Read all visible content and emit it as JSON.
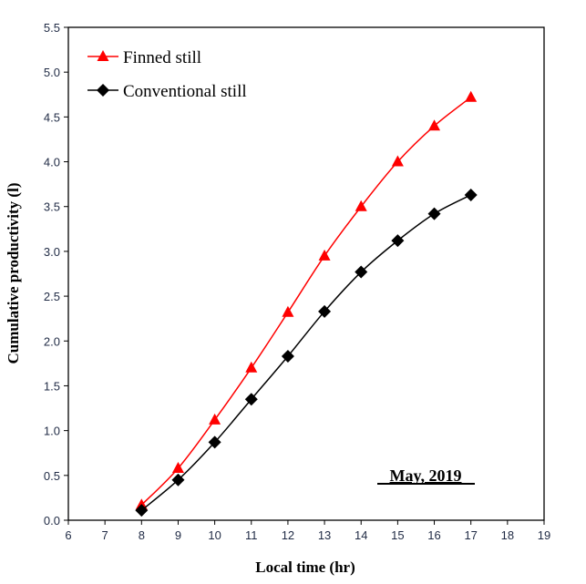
{
  "chart_data": {
    "type": "line",
    "title": "",
    "xlabel": "Local time (hr)",
    "ylabel": "Cumulative productivity (l)",
    "xlim": [
      6,
      19
    ],
    "ylim": [
      0,
      5.5
    ],
    "xticks": [
      6,
      7,
      8,
      9,
      10,
      11,
      12,
      13,
      14,
      15,
      16,
      17,
      18,
      19
    ],
    "yticks": [
      "0.0",
      "0.5",
      "1.0",
      "1.5",
      "2.0",
      "2.5",
      "3.0",
      "3.5",
      "4.0",
      "4.5",
      "5.0",
      "5.5"
    ],
    "x": [
      8,
      9,
      10,
      11,
      12,
      13,
      14,
      15,
      16,
      17
    ],
    "series": [
      {
        "name": "Finned still",
        "color": "#ff0000",
        "marker": "triangle",
        "values": [
          0.17,
          0.58,
          1.12,
          1.7,
          2.32,
          2.95,
          3.5,
          4.0,
          4.4,
          4.72
        ]
      },
      {
        "name": "Conventional still",
        "color": "#000000",
        "marker": "diamond",
        "values": [
          0.11,
          0.45,
          0.87,
          1.35,
          1.83,
          2.33,
          2.77,
          3.12,
          3.42,
          3.63
        ]
      }
    ],
    "legend": "top-left",
    "annotation": "May, 2019",
    "grid": false
  }
}
